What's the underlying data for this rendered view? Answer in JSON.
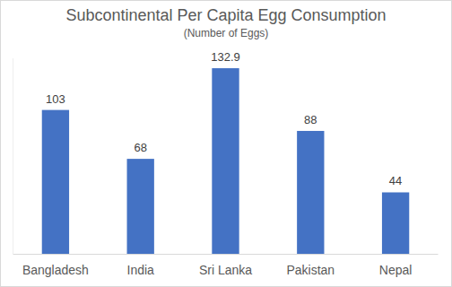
{
  "chart_data": {
    "type": "bar",
    "title": "Subcontinental Per Capita Egg Consumption",
    "subtitle": "(Number of Eggs)",
    "categories": [
      "Bangladesh",
      "India",
      "Sri Lanka",
      "Pakistan",
      "Nepal"
    ],
    "values": [
      103,
      68,
      132.9,
      88,
      44
    ],
    "color": "#4472c4",
    "ylim": [
      0,
      140
    ],
    "grid": false,
    "data_labels": true,
    "tick_labels": "x"
  }
}
